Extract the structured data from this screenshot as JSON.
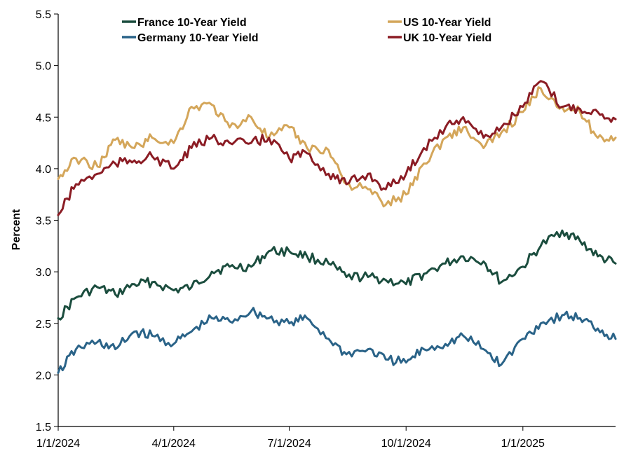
{
  "chart_data": {
    "type": "line",
    "title": "",
    "xlabel": "",
    "ylabel": "Percent",
    "ylim": [
      1.5,
      5.5
    ],
    "y_ticks": [
      "1.5",
      "2.0",
      "2.5",
      "3.0",
      "3.5",
      "4.0",
      "4.5",
      "5.0",
      "5.5"
    ],
    "xlim": [
      "1/1/2024",
      "3/15/2025"
    ],
    "x_ticks": [
      "1/1/2024",
      "4/1/2024",
      "7/1/2024",
      "10/1/2024",
      "1/1/2025"
    ],
    "grid": false,
    "legend_position": "top",
    "series": [
      {
        "name": "France 10-Year Yield",
        "color": "#1b4d3e",
        "x": [
          "1/1/2024",
          "1/15/2024",
          "2/1/2024",
          "2/15/2024",
          "3/1/2024",
          "3/15/2024",
          "4/1/2024",
          "4/15/2024",
          "5/1/2024",
          "5/15/2024",
          "6/1/2024",
          "6/15/2024",
          "7/1/2024",
          "7/15/2024",
          "8/1/2024",
          "8/15/2024",
          "9/1/2024",
          "9/15/2024",
          "10/1/2024",
          "10/15/2024",
          "11/1/2024",
          "11/15/2024",
          "12/1/2024",
          "12/15/2024",
          "1/1/2025",
          "1/15/2025",
          "2/1/2025",
          "2/15/2025",
          "3/1/2025",
          "3/15/2025"
        ],
        "values": [
          2.55,
          2.75,
          2.85,
          2.78,
          2.88,
          2.9,
          2.82,
          2.85,
          3.0,
          3.05,
          3.05,
          3.2,
          3.2,
          3.15,
          3.08,
          2.95,
          2.95,
          2.92,
          2.88,
          2.98,
          3.08,
          3.15,
          3.1,
          2.9,
          3.05,
          3.25,
          3.4,
          3.3,
          3.15,
          3.08
        ]
      },
      {
        "name": "Germany 10-Year Yield",
        "color": "#2a6388",
        "x": [
          "1/1/2024",
          "1/15/2024",
          "2/1/2024",
          "2/15/2024",
          "3/1/2024",
          "3/15/2024",
          "4/1/2024",
          "4/15/2024",
          "5/1/2024",
          "5/15/2024",
          "6/1/2024",
          "6/15/2024",
          "7/1/2024",
          "7/15/2024",
          "8/1/2024",
          "8/15/2024",
          "9/1/2024",
          "9/15/2024",
          "10/1/2024",
          "10/15/2024",
          "11/1/2024",
          "11/15/2024",
          "12/1/2024",
          "12/15/2024",
          "1/1/2025",
          "1/15/2025",
          "2/1/2025",
          "2/15/2025",
          "3/1/2025",
          "3/15/2025"
        ],
        "values": [
          2.02,
          2.25,
          2.32,
          2.25,
          2.42,
          2.38,
          2.3,
          2.42,
          2.55,
          2.52,
          2.62,
          2.55,
          2.5,
          2.55,
          2.35,
          2.2,
          2.25,
          2.15,
          2.12,
          2.25,
          2.3,
          2.38,
          2.25,
          2.1,
          2.35,
          2.5,
          2.58,
          2.55,
          2.45,
          2.35
        ]
      },
      {
        "name": "US 10-Year Yield",
        "color": "#d4a65a",
        "x": [
          "1/1/2024",
          "1/15/2024",
          "2/1/2024",
          "2/15/2024",
          "3/1/2024",
          "3/15/2024",
          "4/1/2024",
          "4/15/2024",
          "5/1/2024",
          "5/15/2024",
          "6/1/2024",
          "6/15/2024",
          "7/1/2024",
          "7/15/2024",
          "8/1/2024",
          "8/15/2024",
          "9/1/2024",
          "9/15/2024",
          "10/1/2024",
          "10/15/2024",
          "11/1/2024",
          "11/15/2024",
          "12/1/2024",
          "12/15/2024",
          "1/1/2025",
          "1/15/2025",
          "2/1/2025",
          "2/15/2025",
          "3/1/2025",
          "3/15/2025"
        ],
        "values": [
          3.9,
          4.1,
          4.02,
          4.28,
          4.2,
          4.3,
          4.25,
          4.6,
          4.62,
          4.4,
          4.5,
          4.3,
          4.4,
          4.2,
          4.18,
          3.85,
          3.8,
          3.65,
          3.75,
          4.05,
          4.3,
          4.4,
          4.2,
          4.35,
          4.55,
          4.78,
          4.6,
          4.55,
          4.3,
          4.3
        ]
      },
      {
        "name": "UK 10-Year Yield",
        "color": "#8b1c24",
        "x": [
          "1/1/2024",
          "1/15/2024",
          "2/1/2024",
          "2/15/2024",
          "3/1/2024",
          "3/15/2024",
          "4/1/2024",
          "4/15/2024",
          "5/1/2024",
          "5/15/2024",
          "6/1/2024",
          "6/15/2024",
          "7/1/2024",
          "7/15/2024",
          "8/1/2024",
          "8/15/2024",
          "9/1/2024",
          "9/15/2024",
          "10/1/2024",
          "10/15/2024",
          "11/1/2024",
          "11/15/2024",
          "12/1/2024",
          "12/15/2024",
          "1/1/2025",
          "1/15/2025",
          "2/1/2025",
          "2/15/2025",
          "3/1/2025",
          "3/15/2025"
        ],
        "values": [
          3.55,
          3.85,
          3.95,
          4.05,
          4.08,
          4.12,
          4.0,
          4.2,
          4.3,
          4.25,
          4.25,
          4.3,
          4.1,
          4.15,
          3.95,
          3.85,
          3.95,
          3.8,
          3.95,
          4.2,
          4.4,
          4.5,
          4.3,
          4.4,
          4.6,
          4.85,
          4.6,
          4.58,
          4.55,
          4.48
        ]
      }
    ]
  }
}
